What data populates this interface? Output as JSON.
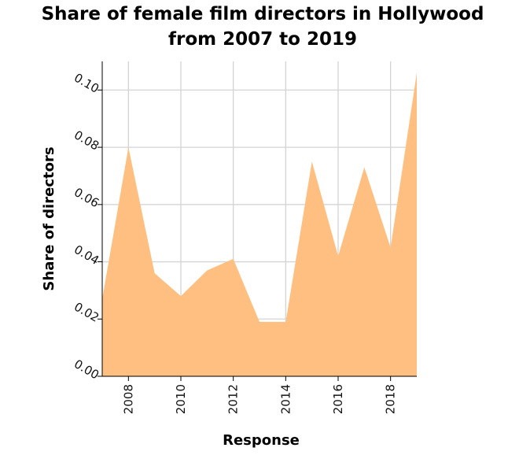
{
  "chart_data": {
    "type": "area",
    "title_line1": "Share of female film directors in Hollywood",
    "title_line2": "from 2007 to 2019",
    "xlabel": "Response",
    "ylabel": "Share of directors",
    "x": [
      2007,
      2008,
      2009,
      2010,
      2011,
      2012,
      2013,
      2014,
      2015,
      2016,
      2017,
      2018,
      2019
    ],
    "values": [
      0.027,
      0.08,
      0.036,
      0.028,
      0.037,
      0.041,
      0.019,
      0.019,
      0.075,
      0.042,
      0.073,
      0.045,
      0.106
    ],
    "xlim": [
      2007,
      2019
    ],
    "ylim": [
      0,
      0.11
    ],
    "xticks": [
      "2008",
      "2010",
      "2012",
      "2014",
      "2016",
      "2018"
    ],
    "yticks": [
      "0.00",
      "0.02",
      "0.04",
      "0.06",
      "0.08",
      "0.10"
    ],
    "fill_color": "#ffbf80",
    "grid": true
  }
}
